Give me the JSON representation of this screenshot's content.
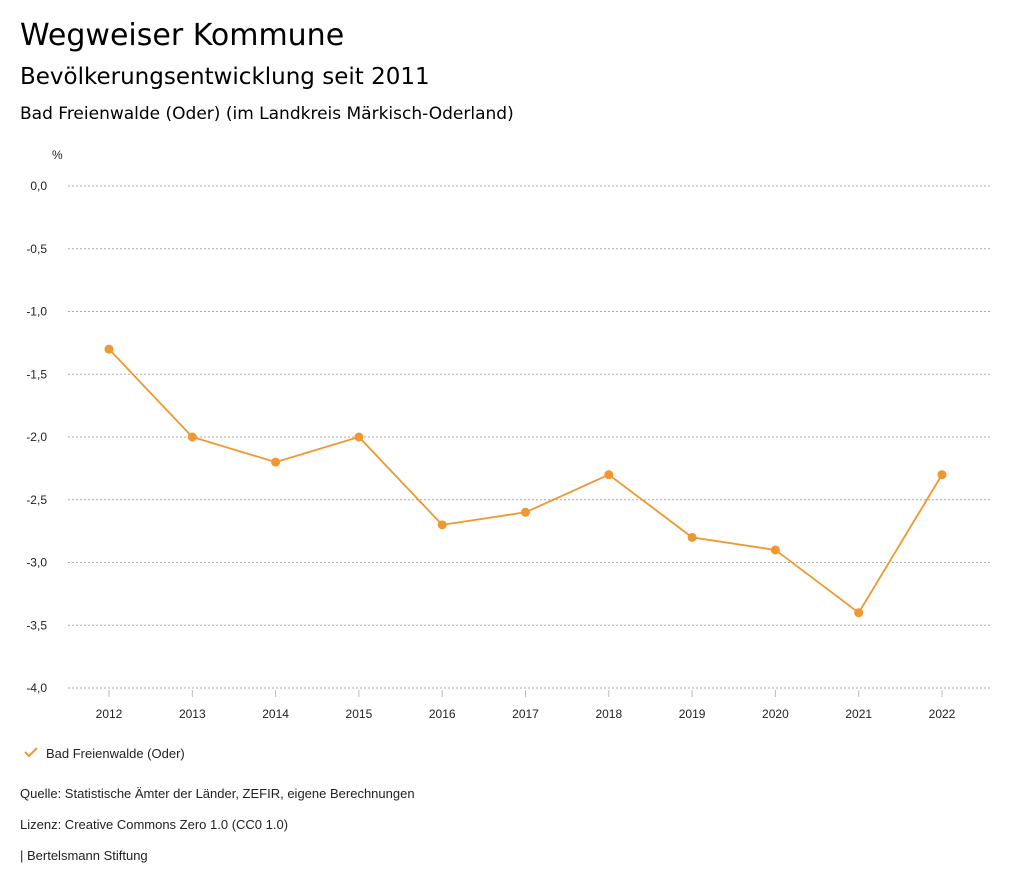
{
  "header": {
    "title": "Wegweiser Kommune",
    "subtitle": "Bevölkerungsentwicklung seit 2011",
    "region": "Bad Freienwalde (Oder) (im Landkreis Märkisch-Oderland)"
  },
  "chart_data": {
    "type": "line",
    "title": "Bevölkerungsentwicklung seit 2011",
    "ylabel": "%",
    "xlabel": "",
    "x": [
      "2012",
      "2013",
      "2014",
      "2015",
      "2016",
      "2017",
      "2018",
      "2019",
      "2020",
      "2021",
      "2022"
    ],
    "series": [
      {
        "name": "Bad Freienwalde (Oder)",
        "color": "#f0972f",
        "values": [
          -1.3,
          -2.0,
          -2.2,
          -2.0,
          -2.7,
          -2.6,
          -2.3,
          -2.8,
          -2.9,
          -3.4,
          -2.3
        ]
      }
    ],
    "ylim": [
      -4.0,
      0.0
    ],
    "yticks": [
      0.0,
      -0.5,
      -1.0,
      -1.5,
      -2.0,
      -2.5,
      -3.0,
      -3.5,
      -4.0
    ],
    "ytick_labels": [
      "0,0",
      "-0,5",
      "-1,0",
      "-1,5",
      "-2,0",
      "-2,5",
      "-3,0",
      "-3,5",
      "-4,0"
    ],
    "grid": true,
    "legend_position": "bottom-left"
  },
  "footer": {
    "source": "Quelle: Statistische Ämter der Länder, ZEFIR, eigene Berechnungen",
    "license": "Lizenz: Creative Commons Zero 1.0 (CC0 1.0)",
    "publisher": "| Bertelsmann Stiftung"
  }
}
